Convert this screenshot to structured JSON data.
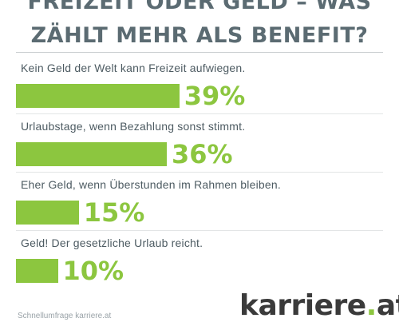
{
  "title_line1": "FREIZEIT ODER GELD – WAS",
  "title_line2": "ZÄHLT MEHR ALS BENEFIT?",
  "brand": {
    "name": "karriere",
    "dot": ".",
    "tld": "at"
  },
  "source": "Schnellumfrage karriere.at",
  "colors": {
    "bar": "#8cc63f",
    "title": "#5b6b72",
    "text": "#4d5b62"
  },
  "chart_data": {
    "type": "bar",
    "orientation": "horizontal",
    "categories": [
      "Kein Geld der Welt kann Freizeit aufwiegen.",
      "Urlaubstage, wenn Bezahlung sonst stimmt.",
      "Eher Geld, wenn Überstunden im Rahmen bleiben.",
      "Geld! Der gesetzliche Urlaub reicht."
    ],
    "values": [
      39,
      36,
      15,
      10
    ],
    "value_labels": [
      "39%",
      "36%",
      "15%",
      "10%"
    ],
    "title": "FREIZEIT ODER GELD – WAS ZÄHLT MEHR ALS BENEFIT?",
    "xlim": [
      0,
      100
    ],
    "grid": false,
    "legend": "none"
  }
}
